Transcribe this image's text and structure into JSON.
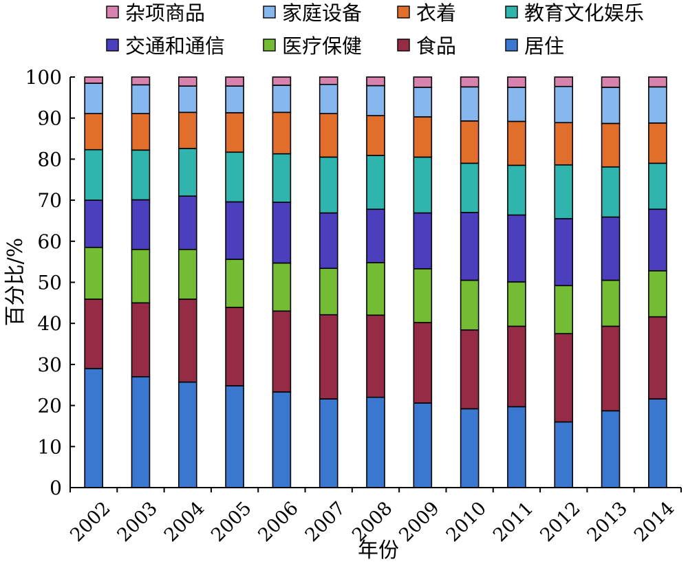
{
  "chart_data": {
    "type": "bar",
    "stacked": true,
    "xlabel": "年份",
    "ylabel": "百分比/%",
    "ylim": [
      0,
      100
    ],
    "yticks": [
      0,
      10,
      20,
      30,
      40,
      50,
      60,
      70,
      80,
      90,
      100
    ],
    "grid": false,
    "legend_position": "top",
    "categories": [
      "2002",
      "2003",
      "2004",
      "2005",
      "2006",
      "2007",
      "2008",
      "2009",
      "2010",
      "2011",
      "2012",
      "2013",
      "2014"
    ],
    "series": [
      {
        "name": "居住",
        "color": "#3A78CF",
        "values": [
          29.0,
          27.0,
          25.7,
          24.8,
          23.3,
          21.6,
          22.0,
          20.6,
          19.2,
          19.7,
          16.0,
          18.7,
          21.6
        ]
      },
      {
        "name": "食品",
        "color": "#962B45",
        "values": [
          16.9,
          18.0,
          20.2,
          19.1,
          19.7,
          20.5,
          20.0,
          19.6,
          19.2,
          19.6,
          21.5,
          20.6,
          20.0
        ]
      },
      {
        "name": "医疗保健",
        "color": "#73BC33",
        "values": [
          12.6,
          13.0,
          12.1,
          11.7,
          11.7,
          11.3,
          12.8,
          13.1,
          12.1,
          10.8,
          11.7,
          11.2,
          11.2
        ]
      },
      {
        "name": "交通和通信",
        "color": "#4B3FBD",
        "values": [
          11.5,
          12.1,
          13.0,
          14.0,
          14.8,
          13.5,
          13.0,
          13.6,
          16.5,
          16.3,
          16.3,
          15.4,
          15.0
        ]
      },
      {
        "name": "教育文化娱乐",
        "color": "#2FB4AE",
        "values": [
          12.3,
          12.1,
          11.6,
          12.1,
          11.8,
          13.6,
          13.1,
          13.6,
          12.0,
          12.1,
          13.1,
          12.2,
          11.2
        ]
      },
      {
        "name": "衣着",
        "color": "#E26E2C",
        "values": [
          8.8,
          8.9,
          8.8,
          9.6,
          10.1,
          10.6,
          9.7,
          9.8,
          10.3,
          10.7,
          10.3,
          10.6,
          9.8
        ]
      },
      {
        "name": "家庭设备",
        "color": "#86B7EE",
        "values": [
          7.4,
          7.0,
          6.4,
          6.5,
          6.6,
          7.1,
          7.3,
          7.2,
          8.3,
          8.3,
          8.8,
          8.8,
          8.8
        ]
      },
      {
        "name": "杂项商品",
        "color": "#D783AE",
        "values": [
          1.5,
          1.9,
          2.2,
          2.2,
          2.0,
          1.8,
          2.1,
          2.5,
          2.4,
          2.5,
          2.3,
          2.5,
          2.4
        ]
      }
    ],
    "legend_order": [
      "杂项商品",
      "家庭设备",
      "衣着",
      "教育文化娱乐",
      "交通和通信",
      "医疗保健",
      "食品",
      "居住"
    ]
  }
}
